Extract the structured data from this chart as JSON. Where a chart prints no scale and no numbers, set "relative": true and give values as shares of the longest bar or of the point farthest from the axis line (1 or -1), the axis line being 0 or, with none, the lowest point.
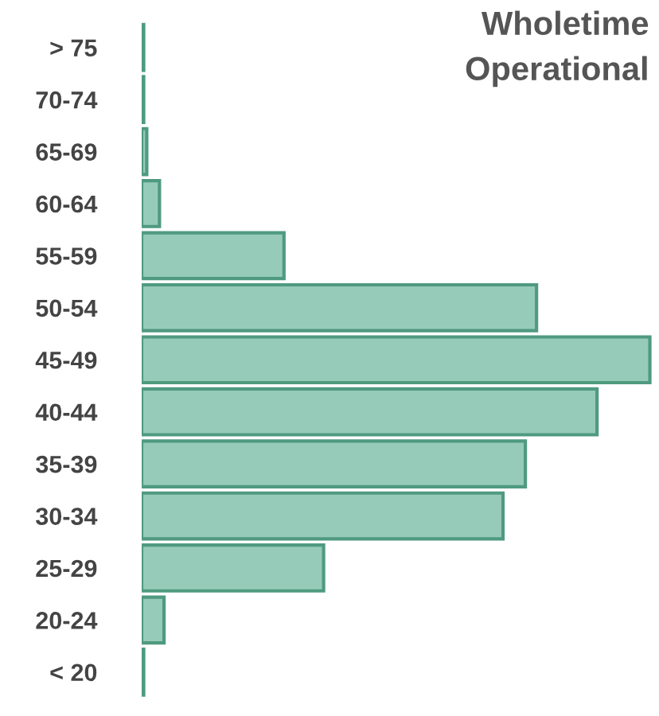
{
  "chart_data": {
    "type": "bar",
    "orientation": "horizontal",
    "relative": true,
    "title": "Wholetime\nOperational",
    "categories": [
      "> 75",
      "70-74",
      "65-69",
      "60-64",
      "55-59",
      "50-54",
      "45-49",
      "40-44",
      "35-39",
      "30-34",
      "25-29",
      "20-24",
      "< 20"
    ],
    "series": [
      {
        "color": "#97cbb9",
        "values": [
          0.004,
          0.004,
          0.01,
          0.035,
          0.28,
          0.777,
          1,
          0.896,
          0.755,
          0.711,
          0.358,
          0.044,
          0.004
        ]
      }
    ],
    "grid": false,
    "legend": false
  }
}
